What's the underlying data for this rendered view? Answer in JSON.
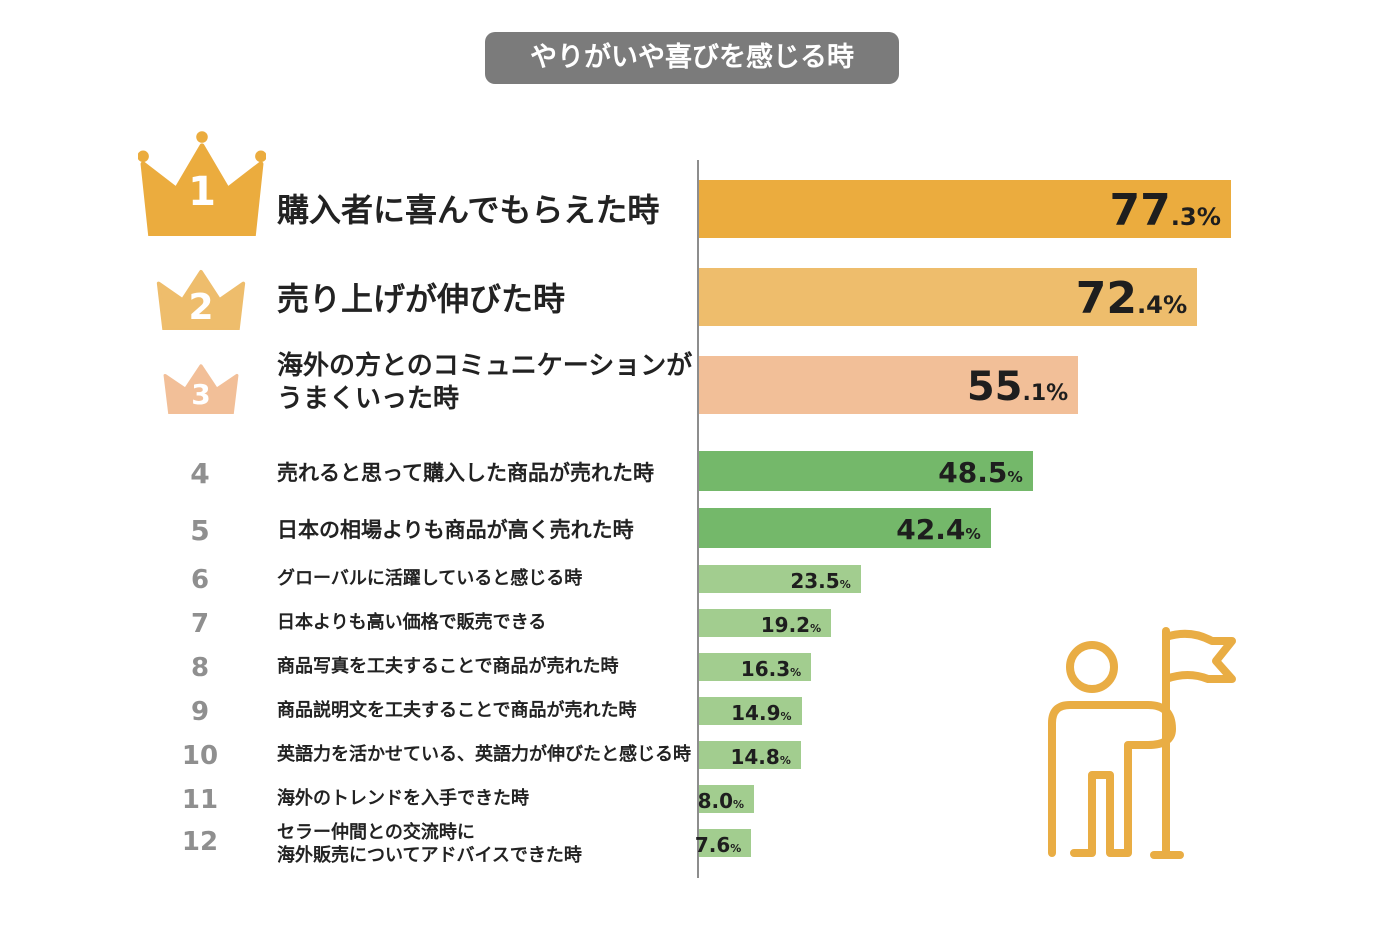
{
  "title": "やりがいや喜びを感じる時",
  "colors": {
    "rank1": "#ebac3e",
    "rank2": "#eebd6c",
    "rank3": "#f2bf98",
    "dark_green": "#74b86a",
    "light_green": "#a2cd8f",
    "icon": "#e9ad44",
    "title_bg": "#7b7b7b"
  },
  "chart_data": {
    "type": "bar",
    "orientation": "horizontal",
    "title": "やりがいや喜びを感じる時",
    "unit": "%",
    "items": [
      {
        "rank": "1",
        "label": "購入者に喜んでもらえた時",
        "value": 77.3,
        "int": "77",
        "dec": ".3",
        "pct": "%"
      },
      {
        "rank": "2",
        "label": "売り上げが伸びた時",
        "value": 72.4,
        "int": "72",
        "dec": ".4",
        "pct": "%"
      },
      {
        "rank": "3",
        "label": "海外の方とのコミュニケーションが\nうまくいった時",
        "value": 55.1,
        "int": "55",
        "dec": ".1",
        "pct": "%"
      },
      {
        "rank": "4",
        "label": "売れると思って購入した商品が売れた時",
        "value": 48.5,
        "int": "48.5",
        "dec": "",
        "pct": "%"
      },
      {
        "rank": "5",
        "label": "日本の相場よりも商品が高く売れた時",
        "value": 42.4,
        "int": "42.4",
        "dec": "",
        "pct": "%"
      },
      {
        "rank": "6",
        "label": "グローバルに活躍していると感じる時",
        "value": 23.5,
        "int": "23.5",
        "dec": "",
        "pct": "%"
      },
      {
        "rank": "7",
        "label": "日本よりも高い価格で販売できる",
        "value": 19.2,
        "int": "19.2",
        "dec": "",
        "pct": "%"
      },
      {
        "rank": "8",
        "label": "商品写真を工夫することで商品が売れた時",
        "value": 16.3,
        "int": "16.3",
        "dec": "",
        "pct": "%"
      },
      {
        "rank": "9",
        "label": "商品説明文を工夫することで商品が売れた時",
        "value": 14.9,
        "int": "14.9",
        "dec": "",
        "pct": "%"
      },
      {
        "rank": "10",
        "label": "英語力を活かせている、英語力が伸びたと感じる時",
        "value": 14.8,
        "int": "14.8",
        "dec": "",
        "pct": "%"
      },
      {
        "rank": "11",
        "label": "海外のトレンドを入手できた時",
        "value": 8.0,
        "int": "8.0",
        "dec": "",
        "pct": "%"
      },
      {
        "rank": "12",
        "label": "セラー仲間との交流時に\n海外販売についてアドバイスできた時",
        "value": 7.6,
        "int": "7.6",
        "dec": "",
        "pct": "%"
      }
    ]
  }
}
